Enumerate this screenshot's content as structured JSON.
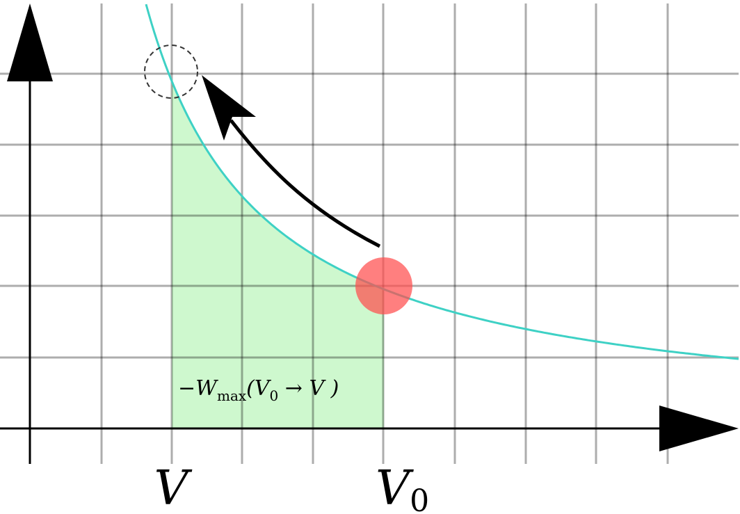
{
  "labels": {
    "v_axis": "V",
    "v0_axis": "V",
    "v0_subscript": "0",
    "work_prefix": "−W",
    "work_subscript": "max",
    "work_open": "(V",
    "work_sub0": "0",
    "work_arrow": " → V )"
  },
  "colors": {
    "curve": "#3ed1c5",
    "area_fill": "#c6f7c6",
    "start_point": "#ff6b6b",
    "arrow": "#000000",
    "grid": "#000000"
  },
  "icons": {
    "start_marker": "filled-circle",
    "end_marker": "dashed-circle",
    "path_arrow": "curved-arrow"
  }
}
